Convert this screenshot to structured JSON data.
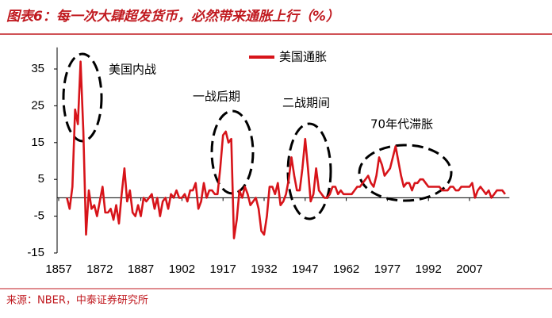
{
  "chart_data": {
    "type": "line",
    "title": "图表6：每一次大肆超发货币，必然带来通胀上行（%）",
    "source": "来源：NBER，中泰证券研究所",
    "annotations": [
      "美国内战",
      "一战后期",
      "二战期间",
      "70年代滞胀"
    ],
    "x": [
      1860,
      1861,
      1862,
      1863,
      1864,
      1865,
      1866,
      1867,
      1868,
      1869,
      1870,
      1871,
      1872,
      1873,
      1874,
      1875,
      1876,
      1877,
      1878,
      1879,
      1880,
      1881,
      1882,
      1883,
      1884,
      1885,
      1886,
      1887,
      1888,
      1889,
      1890,
      1891,
      1892,
      1893,
      1894,
      1895,
      1896,
      1897,
      1898,
      1899,
      1900,
      1901,
      1902,
      1903,
      1904,
      1905,
      1906,
      1907,
      1908,
      1909,
      1910,
      1911,
      1912,
      1913,
      1914,
      1915,
      1916,
      1917,
      1918,
      1919,
      1920,
      1921,
      1922,
      1923,
      1924,
      1925,
      1926,
      1927,
      1928,
      1929,
      1930,
      1931,
      1932,
      1933,
      1934,
      1935,
      1936,
      1937,
      1938,
      1939,
      1940,
      1941,
      1942,
      1943,
      1944,
      1945,
      1946,
      1947,
      1948,
      1949,
      1950,
      1951,
      1952,
      1953,
      1954,
      1955,
      1956,
      1957,
      1958,
      1959,
      1960,
      1961,
      1962,
      1963,
      1964,
      1965,
      1966,
      1967,
      1968,
      1969,
      1970,
      1971,
      1972,
      1973,
      1974,
      1975,
      1976,
      1977,
      1978,
      1979,
      1980,
      1981,
      1982,
      1983,
      1984,
      1985,
      1986,
      1987,
      1988,
      1989,
      1990,
      1991,
      1992,
      1993,
      1994,
      1995,
      1996,
      1997,
      1998,
      1999,
      2000,
      2001,
      2002,
      2003,
      2004,
      2005,
      2006,
      2007,
      2008,
      2009,
      2010,
      2011,
      2012,
      2013,
      2014,
      2015,
      2016,
      2017,
      2018,
      2019,
      2020
    ],
    "series": [
      {
        "name": "美国通胀",
        "color": "#d7141a",
        "values": [
          0,
          -3,
          3,
          24,
          20,
          37,
          18,
          -10,
          2,
          -3,
          -2,
          -5,
          -1,
          3,
          -4,
          -4,
          -3,
          -6,
          -2,
          -7,
          1,
          8,
          -1,
          2,
          -4,
          -5,
          -2,
          -5,
          0,
          -1,
          0,
          1,
          -3,
          0,
          -5,
          -1,
          0,
          -3,
          1,
          0,
          2,
          0,
          0,
          1,
          -1,
          2,
          2,
          4,
          -3,
          -1,
          4,
          0,
          2,
          2,
          1,
          1,
          8,
          17,
          18,
          15,
          16,
          -11,
          -6,
          2,
          0,
          3,
          1,
          -2,
          -1,
          0,
          -3,
          -9,
          -10,
          -5,
          3,
          3,
          1,
          4,
          -2,
          -1,
          1,
          5,
          11,
          6,
          2,
          2,
          8,
          16,
          8,
          -1,
          1,
          8,
          2,
          1,
          0,
          0,
          1,
          3,
          3,
          1,
          2,
          1,
          1,
          1,
          1,
          2,
          3,
          3,
          4,
          5,
          6,
          4,
          3,
          6,
          11,
          9,
          6,
          7,
          8,
          11,
          14,
          10,
          6,
          3,
          4,
          4,
          2,
          4,
          4,
          5,
          5,
          4,
          3,
          3,
          3,
          3,
          3,
          2,
          2,
          2,
          3,
          3,
          2,
          2,
          3,
          3,
          3,
          3,
          4,
          0,
          2,
          3,
          2,
          1,
          2,
          0,
          1,
          2,
          2,
          2,
          1
        ]
      }
    ],
    "xlim": [
      1857,
      2021
    ],
    "xticks": [
      1857,
      1872,
      1887,
      1902,
      1917,
      1932,
      1947,
      1962,
      1977,
      1992,
      2007
    ],
    "ylim": [
      -15,
      40
    ],
    "yticks": [
      -15,
      -5,
      5,
      15,
      25,
      35
    ]
  }
}
